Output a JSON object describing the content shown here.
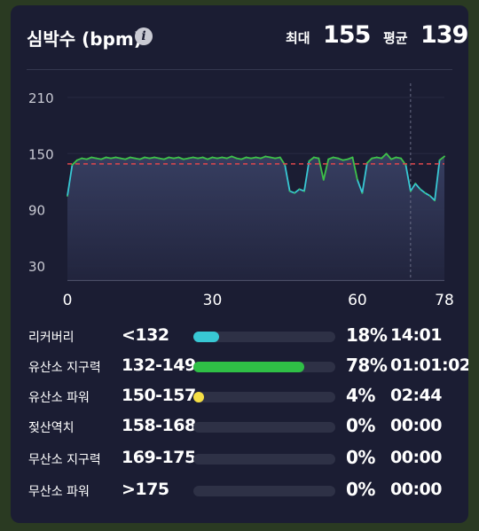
{
  "header": {
    "title": "심박수 (bpm)",
    "info_icon": "info-icon",
    "max_label": "최대",
    "max_value": "155",
    "avg_label": "평균",
    "avg_value": "139"
  },
  "colors": {
    "background": "#1b1d33",
    "line_lower": "#38c8d4",
    "line_upper": "#3ec24a",
    "line_peak": "#f2e24a",
    "average_line": "#e0474c",
    "zone_recovery": "#38c8d4",
    "zone_aerobic_endurance": "#2fbf46",
    "zone_aerobic_power": "#f5df45"
  },
  "chart_data": {
    "type": "line",
    "title": "심박수 (bpm)",
    "xlabel": "",
    "ylabel": "",
    "xlim": [
      0,
      78
    ],
    "ylim": [
      15,
      225
    ],
    "xticks": [
      0,
      30,
      60,
      78
    ],
    "yticks": [
      30,
      90,
      150,
      210
    ],
    "grid": true,
    "average_line": 139,
    "vertical_marker_x": 71,
    "x": [
      0,
      1,
      2,
      3,
      4,
      5,
      6,
      7,
      8,
      9,
      10,
      11,
      12,
      13,
      14,
      15,
      16,
      17,
      18,
      19,
      20,
      21,
      22,
      23,
      24,
      25,
      26,
      27,
      28,
      29,
      30,
      31,
      32,
      33,
      34,
      35,
      36,
      37,
      38,
      39,
      40,
      41,
      42,
      43,
      44,
      45,
      46,
      47,
      48,
      49,
      50,
      51,
      52,
      53,
      54,
      55,
      56,
      57,
      58,
      59,
      60,
      61,
      62,
      63,
      64,
      65,
      66,
      67,
      68,
      69,
      70,
      71,
      72,
      73,
      74,
      75,
      76,
      77,
      78
    ],
    "series": [
      {
        "values": [
          105,
          138,
          143,
          145,
          144,
          146,
          145,
          144,
          146,
          145,
          146,
          145,
          144,
          146,
          145,
          144,
          146,
          145,
          146,
          145,
          144,
          146,
          145,
          146,
          144,
          145,
          146,
          145,
          146,
          144,
          146,
          145,
          146,
          145,
          147,
          145,
          144,
          146,
          145,
          146,
          145,
          147,
          146,
          145,
          146,
          138,
          110,
          108,
          112,
          110,
          142,
          146,
          145,
          122,
          144,
          146,
          145,
          143,
          144,
          146,
          122,
          108,
          140,
          145,
          146,
          145,
          150,
          144,
          146,
          145,
          138,
          110,
          118,
          112,
          108,
          105,
          100,
          143,
          147
        ]
      }
    ]
  },
  "zones": [
    {
      "name": "리커버리",
      "range": "<132",
      "percent": "18%",
      "fraction": 0.18,
      "time": "14:01",
      "color": "#38c8d4"
    },
    {
      "name": "유산소 지구력",
      "range": "132-149",
      "percent": "78%",
      "fraction": 0.78,
      "time": "01:01:02",
      "color": "#2fbf46"
    },
    {
      "name": "유산소 파워",
      "range": "150-157",
      "percent": "4%",
      "fraction": 0.04,
      "time": "02:44",
      "color": "#f5df45"
    },
    {
      "name": "젖산역치",
      "range": "158-168",
      "percent": "0%",
      "fraction": 0,
      "time": "00:00",
      "color": "#e98b3a"
    },
    {
      "name": "무산소 지구력",
      "range": "169-175",
      "percent": "0%",
      "fraction": 0,
      "time": "00:00",
      "color": "#e05858"
    },
    {
      "name": "무산소 파워",
      "range": ">175",
      "percent": "0%",
      "fraction": 0,
      "time": "00:00",
      "color": "#b04ad0"
    }
  ]
}
